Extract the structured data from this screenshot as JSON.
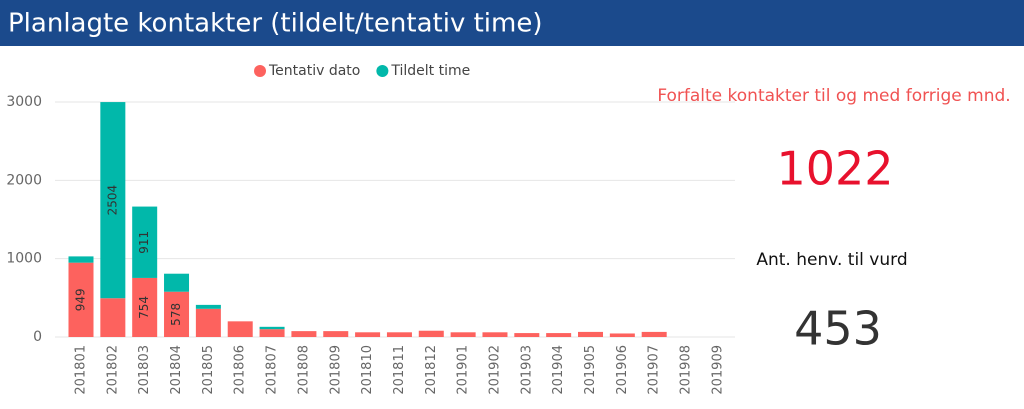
{
  "header": {
    "title": "Planlagte kontakter (tildelt/tentativ time)"
  },
  "chart_data": {
    "type": "stacked_bar",
    "categories": [
      "201801",
      "201802",
      "201803",
      "201804",
      "201805",
      "201806",
      "201807",
      "201808",
      "201809",
      "201810",
      "201811",
      "201812",
      "201901",
      "201902",
      "201903",
      "201904",
      "201905",
      "201906",
      "201907",
      "201908",
      "201909"
    ],
    "series": [
      {
        "name": "Tentativ dato",
        "color": "#fd625e",
        "values": [
          949,
          495,
          754,
          578,
          360,
          200,
          100,
          75,
          75,
          60,
          60,
          80,
          60,
          60,
          50,
          50,
          65,
          45,
          65,
          0,
          0
        ]
      },
      {
        "name": "Tildelt time",
        "color": "#01b8aa",
        "values": [
          80,
          2504,
          911,
          230,
          50,
          0,
          30,
          0,
          0,
          0,
          0,
          0,
          0,
          0,
          0,
          0,
          0,
          0,
          0,
          0,
          0
        ]
      }
    ],
    "ylim": [
      0,
      3000
    ],
    "yticks": [
      0,
      1000,
      2000,
      3000
    ],
    "grid": true,
    "legend": "top"
  },
  "cards": [
    {
      "label": "Forfalte kontakter til og med forrige mnd.",
      "value": 1022
    },
    {
      "label": "Ant. henv. til vurd",
      "value": 453
    }
  ]
}
